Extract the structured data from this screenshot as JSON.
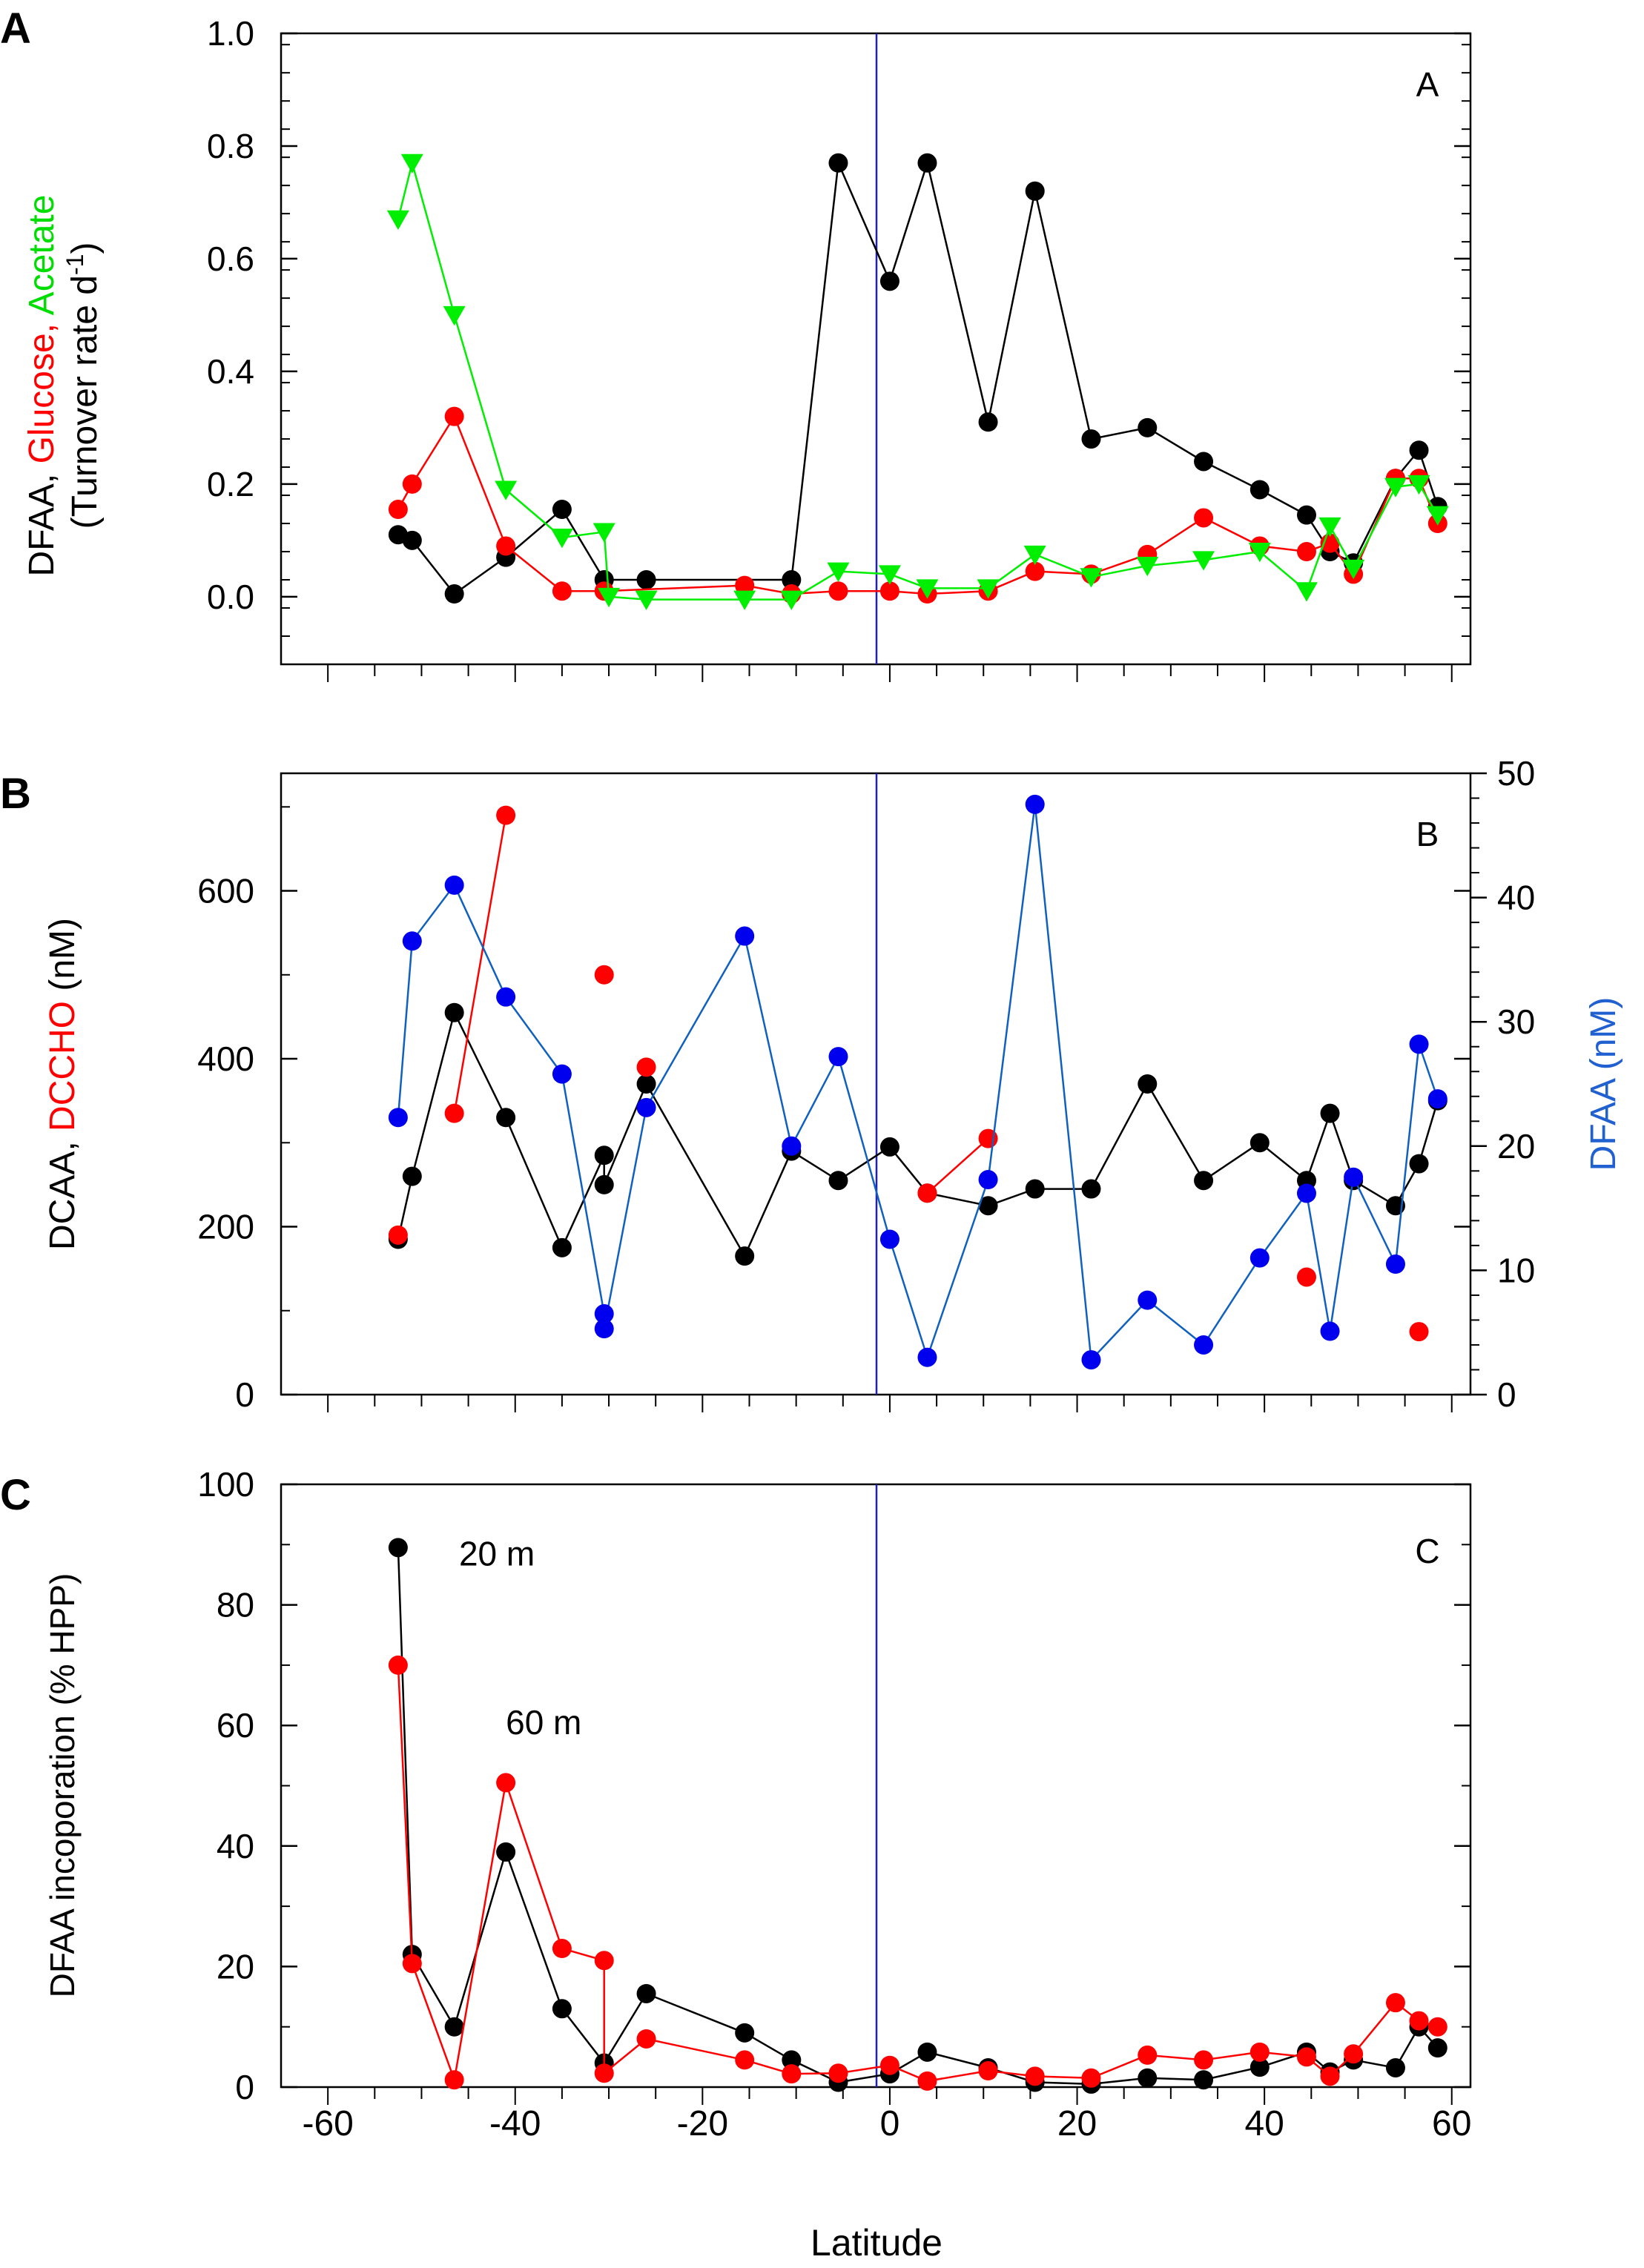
{
  "figure": {
    "shared_x_label": "Latitude",
    "x_tick_labels": [
      "-60",
      "-40",
      "-20",
      "0",
      "20",
      "40",
      "60"
    ]
  },
  "colors": {
    "black": "#000000",
    "red": "#ff0000",
    "green": "#00ee00",
    "blue_series": "#1060c0",
    "blue_dot": "#0000ee",
    "equator_line": "#2020c0",
    "axis_label_blue": "#2060d0"
  },
  "chart_data": [
    {
      "type": "line",
      "panel_letter": "A",
      "panel_tag": "A",
      "title": "",
      "xlabel": "Latitude",
      "xlim": [
        -65,
        62
      ],
      "ylim": [
        -0.12,
        1.0
      ],
      "ylabel_parts": [
        "DFAA, ",
        "Glucose, ",
        "Acetate"
      ],
      "ylabel_line2": "(Turnover rate d",
      "ylabel_sup": "-1",
      "ylabel_close": ")",
      "y_tick_labels": [
        "0.0",
        "0.2",
        "0.4",
        "0.6",
        "0.8",
        "1.0"
      ],
      "y_tick_values": [
        0,
        0.2,
        0.4,
        0.6,
        0.8,
        1.0
      ],
      "series": [
        {
          "name": "DFAA",
          "color": "black",
          "marker": "circle",
          "points": [
            [
              -52.5,
              0.11
            ],
            [
              -51,
              0.1
            ],
            [
              -46.5,
              0.005
            ],
            [
              -41,
              0.07
            ],
            [
              -35,
              0.155
            ],
            [
              -30.5,
              0.03
            ],
            [
              -26,
              0.03
            ],
            [
              -10.5,
              0.03
            ],
            [
              -5.5,
              0.77
            ],
            [
              0,
              0.56
            ],
            [
              4,
              0.77
            ],
            [
              10.5,
              0.31
            ],
            [
              15.5,
              0.72
            ],
            [
              21.5,
              0.28
            ],
            [
              27.5,
              0.3
            ],
            [
              33.5,
              0.24
            ],
            [
              39.5,
              0.19
            ],
            [
              44.5,
              0.145
            ],
            [
              47,
              0.08
            ],
            [
              49.5,
              0.06
            ],
            [
              54,
              0.21
            ],
            [
              56.5,
              0.26
            ],
            [
              58.5,
              0.16
            ]
          ]
        },
        {
          "name": "Glucose",
          "color": "red",
          "marker": "circle",
          "points": [
            [
              -52.5,
              0.155
            ],
            [
              -51,
              0.2
            ],
            [
              -46.5,
              0.32
            ],
            [
              -41,
              0.09
            ],
            [
              -35,
              0.01
            ],
            [
              -30.5,
              0.01
            ],
            [
              -15.5,
              0.02
            ],
            [
              -10.5,
              0.005
            ],
            [
              -5.5,
              0.01
            ],
            [
              0,
              0.01
            ],
            [
              4,
              0.005
            ],
            [
              10.5,
              0.01
            ],
            [
              15.5,
              0.045
            ],
            [
              21.5,
              0.04
            ],
            [
              27.5,
              0.075
            ],
            [
              33.5,
              0.14
            ],
            [
              39.5,
              0.09
            ],
            [
              44.5,
              0.08
            ],
            [
              47,
              0.095
            ],
            [
              49.5,
              0.04
            ],
            [
              54,
              0.21
            ],
            [
              56.5,
              0.21
            ],
            [
              58.5,
              0.13
            ]
          ]
        },
        {
          "name": "Acetate",
          "color": "green",
          "marker": "triangle-down",
          "points": [
            [
              -52.5,
              0.67
            ],
            [
              -51,
              0.77
            ],
            [
              -46.5,
              0.5
            ],
            [
              -41,
              0.19
            ],
            [
              -35,
              0.105
            ],
            [
              -30.5,
              0.115
            ],
            [
              -30,
              0.0
            ],
            [
              -26,
              -0.005
            ],
            [
              -15.5,
              -0.005
            ],
            [
              -10.5,
              -0.005
            ],
            [
              -5.5,
              0.045
            ],
            [
              0,
              0.04
            ],
            [
              4,
              0.015
            ],
            [
              10.5,
              0.015
            ],
            [
              15.5,
              0.075
            ],
            [
              21.5,
              0.035
            ],
            [
              27.5,
              0.055
            ],
            [
              33.5,
              0.065
            ],
            [
              39.5,
              0.08
            ],
            [
              44.5,
              0.01
            ],
            [
              47,
              0.125
            ],
            [
              49.5,
              0.05
            ],
            [
              54,
              0.195
            ],
            [
              56.5,
              0.2
            ],
            [
              58.5,
              0.145
            ]
          ]
        }
      ]
    },
    {
      "type": "line",
      "panel_letter": "B",
      "panel_tag": "B",
      "title": "",
      "xlabel": "Latitude",
      "xlim": [
        -65,
        62
      ],
      "ylim": [
        0,
        740
      ],
      "y2lim": [
        0,
        50
      ],
      "ylabel_parts": [
        "DCAA, ",
        "DCCHO",
        " (nM)"
      ],
      "ylabel_right": "DFAA (nM)",
      "y_tick_labels": [
        "0",
        "200",
        "400",
        "600"
      ],
      "y_tick_values": [
        0,
        200,
        400,
        600
      ],
      "y2_tick_labels": [
        "0",
        "10",
        "20",
        "30",
        "40",
        "50"
      ],
      "y2_tick_values": [
        0,
        10,
        20,
        30,
        40,
        50
      ],
      "series": [
        {
          "name": "DCAA",
          "color": "black",
          "marker": "circle",
          "axis": "left",
          "points": [
            [
              -52.5,
              185
            ],
            [
              -51,
              260
            ],
            [
              -46.5,
              455
            ],
            [
              -41,
              330
            ],
            [
              -35,
              175
            ],
            [
              -30.5,
              285
            ],
            [
              -30.5,
              250
            ],
            [
              -26,
              370
            ],
            [
              -15.5,
              165
            ],
            [
              -10.5,
              290
            ],
            [
              -5.5,
              255
            ],
            [
              0,
              295
            ],
            [
              4,
              240
            ],
            [
              10.5,
              225
            ],
            [
              15.5,
              245
            ],
            [
              21.5,
              245
            ],
            [
              27.5,
              370
            ],
            [
              33.5,
              255
            ],
            [
              39.5,
              300
            ],
            [
              44.5,
              255
            ],
            [
              47,
              335
            ],
            [
              49.5,
              255
            ],
            [
              54,
              225
            ],
            [
              56.5,
              275
            ],
            [
              58.5,
              350
            ]
          ]
        },
        {
          "name": "DCCHO",
          "color": "red",
          "marker": "circle",
          "axis": "left",
          "segments": [
            [
              [
                -46.5,
                335
              ],
              [
                -41,
                690
              ]
            ],
            [
              [
                4,
                240
              ],
              [
                10.5,
                305
              ]
            ]
          ],
          "points": [
            [
              -52.5,
              190
            ],
            [
              -46.5,
              335
            ],
            [
              -41,
              690
            ],
            [
              -30.5,
              500
            ],
            [
              -26,
              390
            ],
            [
              4,
              240
            ],
            [
              10.5,
              305
            ],
            [
              44.5,
              140
            ],
            [
              56.5,
              75
            ]
          ]
        },
        {
          "name": "DFAA",
          "color": "blue_series",
          "marker": "circle",
          "axis": "right",
          "points": [
            [
              -52.5,
              22.3
            ],
            [
              -51,
              36.5
            ],
            [
              -46.5,
              41
            ],
            [
              -41,
              32
            ],
            [
              -35,
              25.8
            ],
            [
              -30.5,
              6.5
            ],
            [
              -30.5,
              5.3
            ],
            [
              -26,
              23.1
            ],
            [
              -15.5,
              36.9
            ],
            [
              -10.5,
              20
            ],
            [
              -5.5,
              27.2
            ],
            [
              0,
              12.5
            ],
            [
              4,
              3
            ],
            [
              10.5,
              17.3
            ],
            [
              15.5,
              47.5
            ],
            [
              21.5,
              2.8
            ],
            [
              27.5,
              7.6
            ],
            [
              33.5,
              4
            ],
            [
              39.5,
              11
            ],
            [
              44.5,
              16.2
            ],
            [
              47,
              5.1
            ],
            [
              49.5,
              17.5
            ],
            [
              54,
              10.5
            ],
            [
              56.5,
              28.2
            ],
            [
              58.5,
              23.8
            ]
          ]
        }
      ]
    },
    {
      "type": "line",
      "panel_letter": "C",
      "panel_tag": "C",
      "title": "",
      "xlabel": "Latitude",
      "xlim": [
        -65,
        62
      ],
      "ylim": [
        0,
        100
      ],
      "ylabel": "DFAA incoporation (% HPP)",
      "y_tick_labels": [
        "0",
        "20",
        "40",
        "60",
        "80",
        "100"
      ],
      "y_tick_values": [
        0,
        20,
        40,
        60,
        80,
        100
      ],
      "annotations": [
        {
          "text": "20 m",
          "x": -46,
          "y": 88.5
        },
        {
          "text": "60 m",
          "x": -41,
          "y": 60.5
        }
      ],
      "series": [
        {
          "name": "20 m",
          "color": "black",
          "marker": "circle",
          "points": [
            [
              -52.5,
              89.5
            ],
            [
              -51,
              22
            ],
            [
              -46.5,
              10
            ],
            [
              -41,
              39
            ],
            [
              -35,
              13
            ],
            [
              -30.5,
              4
            ],
            [
              -26,
              15.5
            ],
            [
              -15.5,
              9
            ],
            [
              -10.5,
              4.5
            ],
            [
              -5.5,
              0.8
            ],
            [
              0,
              2.2
            ],
            [
              4,
              5.8
            ],
            [
              10.5,
              3.2
            ],
            [
              15.5,
              0.8
            ],
            [
              21.5,
              0.5
            ],
            [
              27.5,
              1.5
            ],
            [
              33.5,
              1.2
            ],
            [
              39.5,
              3.3
            ],
            [
              44.5,
              5.8
            ],
            [
              47,
              2.5
            ],
            [
              49.5,
              4.5
            ],
            [
              54,
              3.2
            ],
            [
              56.5,
              10
            ],
            [
              58.5,
              6.5
            ]
          ]
        },
        {
          "name": "60 m",
          "color": "red",
          "marker": "circle",
          "points": [
            [
              -52.5,
              70
            ],
            [
              -51,
              20.5
            ],
            [
              -46.5,
              1.2
            ],
            [
              -41,
              50.5
            ],
            [
              -35,
              23
            ],
            [
              -30.5,
              21
            ],
            [
              -30.5,
              2.3
            ],
            [
              -26,
              8
            ],
            [
              -15.5,
              4.5
            ],
            [
              -10.5,
              2.2
            ],
            [
              -5.5,
              2.3
            ],
            [
              0,
              3.6
            ],
            [
              4,
              1
            ],
            [
              10.5,
              2.7
            ],
            [
              15.5,
              1.8
            ],
            [
              21.5,
              1.5
            ],
            [
              27.5,
              5.3
            ],
            [
              33.5,
              4.5
            ],
            [
              39.5,
              5.8
            ],
            [
              44.5,
              5
            ],
            [
              47,
              1.8
            ],
            [
              49.5,
              5.5
            ],
            [
              54,
              14
            ],
            [
              56.5,
              11
            ],
            [
              58.5,
              10
            ]
          ]
        }
      ]
    }
  ]
}
